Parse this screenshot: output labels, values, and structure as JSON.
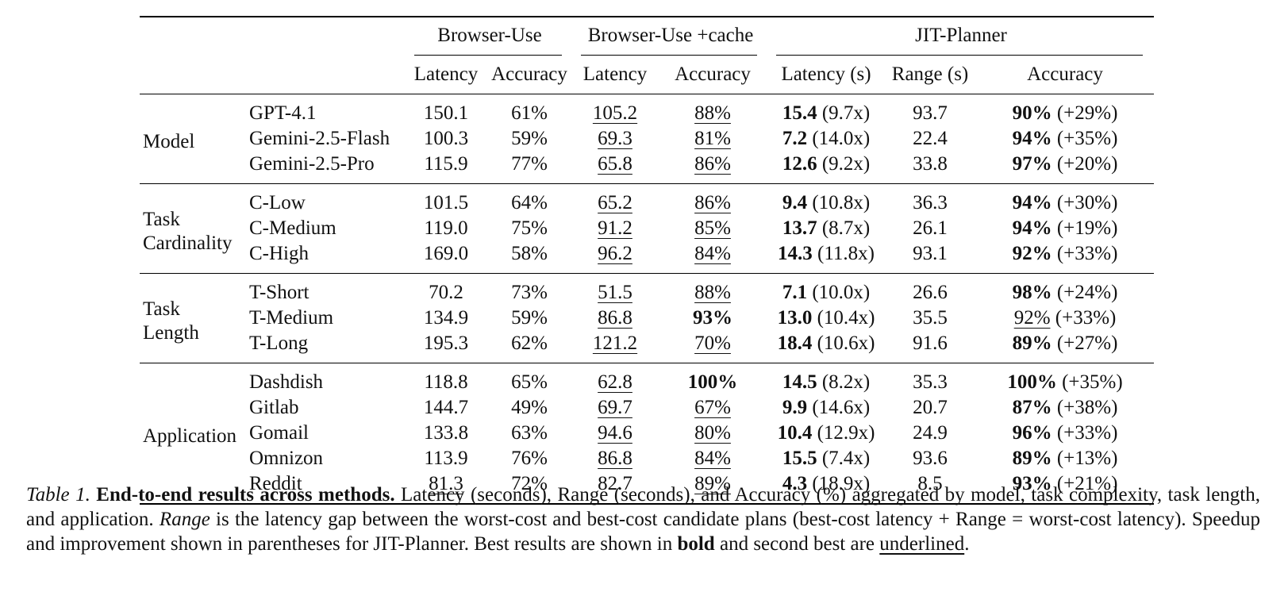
{
  "table": {
    "groups": {
      "browser_use": "Browser-Use",
      "browser_use_cache": "Browser-Use +cache",
      "jit_planner": "JIT-Planner"
    },
    "subheaders": {
      "bu_latency": "Latency",
      "bu_accuracy": "Accuracy",
      "c_latency": "Latency",
      "c_accuracy": "Accuracy",
      "j_latency": "Latency (s)",
      "j_range": "Range (s)",
      "j_accuracy": "Accuracy"
    },
    "sections": [
      {
        "label_lines": [
          "Model"
        ],
        "rows": [
          {
            "name": "GPT-4.1",
            "bu_lat": "150.1",
            "bu_acc": "61%",
            "c_lat": "105.2",
            "c_acc": "88%",
            "j_lat": "15.4",
            "j_speedup": "(9.7x)",
            "j_range": "93.7",
            "j_acc": "90%",
            "j_impr": "(+29%)"
          },
          {
            "name": "Gemini-2.5-Flash",
            "bu_lat": "100.3",
            "bu_acc": "59%",
            "c_lat": "69.3",
            "c_acc": "81%",
            "j_lat": "7.2",
            "j_speedup": "(14.0x)",
            "j_range": "22.4",
            "j_acc": "94%",
            "j_impr": "(+35%)"
          },
          {
            "name": "Gemini-2.5-Pro",
            "bu_lat": "115.9",
            "bu_acc": "77%",
            "c_lat": "65.8",
            "c_acc": "86%",
            "j_lat": "12.6",
            "j_speedup": "(9.2x)",
            "j_range": "33.8",
            "j_acc": "97%",
            "j_impr": "(+20%)"
          }
        ]
      },
      {
        "label_lines": [
          "Task",
          "Cardinality"
        ],
        "rows": [
          {
            "name": "C-Low",
            "bu_lat": "101.5",
            "bu_acc": "64%",
            "c_lat": "65.2",
            "c_acc": "86%",
            "j_lat": "9.4",
            "j_speedup": "(10.8x)",
            "j_range": "36.3",
            "j_acc": "94%",
            "j_impr": "(+30%)"
          },
          {
            "name": "C-Medium",
            "bu_lat": "119.0",
            "bu_acc": "75%",
            "c_lat": "91.2",
            "c_acc": "85%",
            "j_lat": "13.7",
            "j_speedup": "(8.7x)",
            "j_range": "26.1",
            "j_acc": "94%",
            "j_impr": "(+19%)"
          },
          {
            "name": "C-High",
            "bu_lat": "169.0",
            "bu_acc": "58%",
            "c_lat": "96.2",
            "c_acc": "84%",
            "j_lat": "14.3",
            "j_speedup": "(11.8x)",
            "j_range": "93.1",
            "j_acc": "92%",
            "j_impr": "(+33%)"
          }
        ]
      },
      {
        "label_lines": [
          "Task",
          "Length"
        ],
        "rows": [
          {
            "name": "T-Short",
            "bu_lat": "70.2",
            "bu_acc": "73%",
            "c_lat": "51.5",
            "c_acc": "88%",
            "j_lat": "7.1",
            "j_speedup": "(10.0x)",
            "j_range": "26.6",
            "j_acc": "98%",
            "j_impr": "(+24%)"
          },
          {
            "name": "T-Medium",
            "bu_lat": "134.9",
            "bu_acc": "59%",
            "c_lat": "86.8",
            "c_acc": "93%",
            "j_lat": "13.0",
            "j_speedup": "(10.4x)",
            "j_range": "35.5",
            "j_acc": "92%",
            "j_impr": "(+33%)"
          },
          {
            "name": "T-Long",
            "bu_lat": "195.3",
            "bu_acc": "62%",
            "c_lat": "121.2",
            "c_acc": "70%",
            "j_lat": "18.4",
            "j_speedup": "(10.6x)",
            "j_range": "91.6",
            "j_acc": "89%",
            "j_impr": "(+27%)"
          }
        ]
      },
      {
        "label_lines": [
          "Application"
        ],
        "rows": [
          {
            "name": "Dashdish",
            "bu_lat": "118.8",
            "bu_acc": "65%",
            "c_lat": "62.8",
            "c_acc": "100%",
            "j_lat": "14.5",
            "j_speedup": "(8.2x)",
            "j_range": "35.3",
            "j_acc": "100%",
            "j_impr": "(+35%)"
          },
          {
            "name": "Gitlab",
            "bu_lat": "144.7",
            "bu_acc": "49%",
            "c_lat": "69.7",
            "c_acc": "67%",
            "j_lat": "9.9",
            "j_speedup": "(14.6x)",
            "j_range": "20.7",
            "j_acc": "87%",
            "j_impr": "(+38%)"
          },
          {
            "name": "Gomail",
            "bu_lat": "133.8",
            "bu_acc": "63%",
            "c_lat": "94.6",
            "c_acc": "80%",
            "j_lat": "10.4",
            "j_speedup": "(12.9x)",
            "j_range": "24.9",
            "j_acc": "96%",
            "j_impr": "(+33%)"
          },
          {
            "name": "Omnizon",
            "bu_lat": "113.9",
            "bu_acc": "76%",
            "c_lat": "86.8",
            "c_acc": "84%",
            "j_lat": "15.5",
            "j_speedup": "(7.4x)",
            "j_range": "93.6",
            "j_acc": "89%",
            "j_impr": "(+13%)"
          },
          {
            "name": "Reddit",
            "bu_lat": "81.3",
            "bu_acc": "72%",
            "c_lat": "82.7",
            "c_acc": "89%",
            "j_lat": "4.3",
            "j_speedup": "(18.9x)",
            "j_range": "8.5",
            "j_acc": "93%",
            "j_impr": "(+21%)"
          }
        ]
      }
    ]
  },
  "caption": {
    "label": "Table 1.",
    "title": "End-to-end results across methods.",
    "text1": " Latency (seconds), Range (seconds), and Accuracy (%) aggregated by model, task complexity, task length, and application. ",
    "range_term": "Range",
    "text2": " is the latency gap between the worst-cost and best-cost candidate plans (best-cost latency + Range = worst-cost latency). Speedup and improvement shown in parentheses for JIT-Planner. Best results are shown in ",
    "bold_word": "bold",
    "text3": " and second best are ",
    "underline_word": "underlined",
    "text4": "."
  }
}
